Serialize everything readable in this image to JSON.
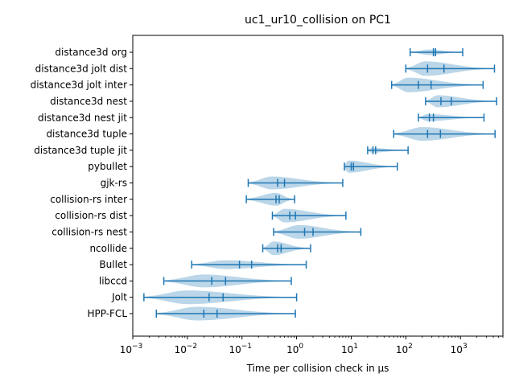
{
  "chart_data": {
    "type": "violin",
    "title": "uc1_ur10_collision on PC1",
    "xlabel": "Time per collision check in µs",
    "ylabel": "",
    "xscale": "log",
    "xlim": [
      0.001,
      6000
    ],
    "x_ticks": [
      {
        "value": 0.001,
        "base": "10",
        "exp": "−3"
      },
      {
        "value": 0.01,
        "base": "10",
        "exp": "−2"
      },
      {
        "value": 0.1,
        "base": "10",
        "exp": "−1"
      },
      {
        "value": 1,
        "base": "10",
        "exp": "0"
      },
      {
        "value": 10,
        "base": "10",
        "exp": "1"
      },
      {
        "value": 100,
        "base": "10",
        "exp": "2"
      },
      {
        "value": 1000,
        "base": "10",
        "exp": "3"
      }
    ],
    "grid": false,
    "colors": {
      "violin_fill": "#1f77b4",
      "line": "#1f77b4"
    },
    "series": [
      {
        "name": "distance3d org",
        "min": 120,
        "median": 320,
        "mean": 350,
        "max": 1100,
        "peak": 270,
        "width": 0.35
      },
      {
        "name": "distance3d jolt dist",
        "min": 100,
        "median": 250,
        "mean": 500,
        "max": 4200,
        "peak": 230,
        "width": 0.9
      },
      {
        "name": "distance3d jolt inter",
        "min": 55,
        "median": 170,
        "mean": 290,
        "max": 2600,
        "peak": 110,
        "width": 0.9
      },
      {
        "name": "distance3d nest",
        "min": 230,
        "median": 440,
        "mean": 680,
        "max": 4600,
        "peak": 380,
        "width": 0.75
      },
      {
        "name": "distance3d nest jit",
        "min": 170,
        "median": 270,
        "mean": 320,
        "max": 2700,
        "peak": 250,
        "width": 0.45
      },
      {
        "name": "distance3d tuple",
        "min": 60,
        "median": 250,
        "mean": 430,
        "max": 4300,
        "peak": 200,
        "width": 0.85
      },
      {
        "name": "distance3d tuple jit",
        "min": 20,
        "median": 25,
        "mean": 28,
        "max": 110,
        "peak": 24,
        "width": 0.3
      },
      {
        "name": "pybullet",
        "min": 7.5,
        "median": 10,
        "mean": 11,
        "max": 70,
        "peak": 9,
        "width": 0.75
      },
      {
        "name": "gjk-rs",
        "min": 0.13,
        "median": 0.45,
        "mean": 0.6,
        "max": 7,
        "peak": 0.35,
        "width": 0.8
      },
      {
        "name": "collision-rs inter",
        "min": 0.12,
        "median": 0.42,
        "mean": 0.48,
        "max": 0.92,
        "peak": 0.42,
        "width": 0.8
      },
      {
        "name": "collision-rs dist",
        "min": 0.36,
        "median": 0.75,
        "mean": 0.95,
        "max": 8,
        "peak": 0.6,
        "width": 0.85
      },
      {
        "name": "collision-rs nest",
        "min": 0.38,
        "median": 1.4,
        "mean": 2.0,
        "max": 15,
        "peak": 1.1,
        "width": 0.85
      },
      {
        "name": "ncollide",
        "min": 0.24,
        "median": 0.45,
        "mean": 0.52,
        "max": 1.8,
        "peak": 0.38,
        "width": 0.85
      },
      {
        "name": "Bullet",
        "min": 0.012,
        "median": 0.09,
        "mean": 0.15,
        "max": 1.5,
        "peak": 0.05,
        "width": 0.55
      },
      {
        "name": "libccd",
        "min": 0.0037,
        "median": 0.028,
        "mean": 0.05,
        "max": 0.8,
        "peak": 0.02,
        "width": 0.8
      },
      {
        "name": "Jolt",
        "min": 0.0016,
        "median": 0.025,
        "mean": 0.045,
        "max": 1.0,
        "peak": 0.01,
        "width": 0.85
      },
      {
        "name": "HPP-FCL",
        "min": 0.0027,
        "median": 0.02,
        "mean": 0.035,
        "max": 0.95,
        "peak": 0.015,
        "width": 0.85
      }
    ]
  }
}
